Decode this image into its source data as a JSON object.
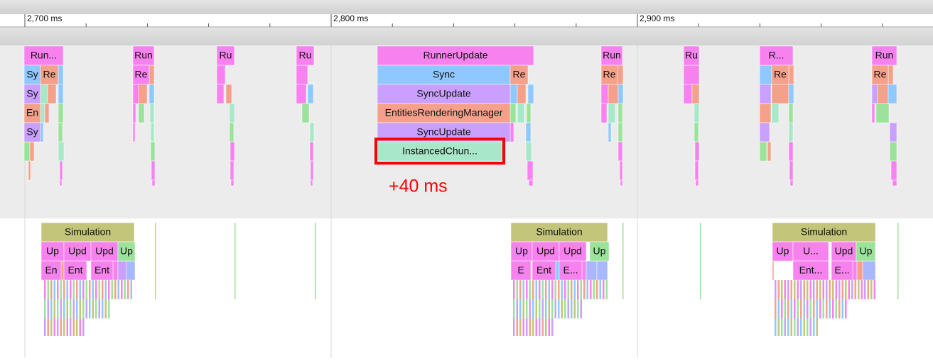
{
  "ruler": {
    "ticks": [
      "2,700 ms",
      "2,800 ms",
      "2,900 ms"
    ]
  },
  "main_thread": {
    "blocks": [
      {
        "label": "Run..."
      },
      {
        "label": "Sy"
      },
      {
        "label": "Re"
      },
      {
        "label": "Sy"
      },
      {
        "label": "En"
      },
      {
        "label": "Sy"
      },
      {
        "label": "Run"
      },
      {
        "label": "Re"
      },
      {
        "label": "Ru"
      },
      {
        "label": "Ru"
      },
      {
        "label": "RunnerUpdate"
      },
      {
        "label": "Sync"
      },
      {
        "label": "Re"
      },
      {
        "label": "SyncUpdate"
      },
      {
        "label": "EntitiesRenderingManager"
      },
      {
        "label": "SyncUpdate"
      },
      {
        "label": "InstancedChun..."
      },
      {
        "label": "Run"
      },
      {
        "label": "Re"
      },
      {
        "label": "Ru"
      },
      {
        "label": "R..."
      },
      {
        "label": "Re"
      },
      {
        "label": "Run"
      },
      {
        "label": "Re"
      }
    ]
  },
  "worker_thread": {
    "blocks": [
      {
        "label": "Simulation"
      },
      {
        "label": "Up"
      },
      {
        "label": "Upd"
      },
      {
        "label": "Upd"
      },
      {
        "label": "Up"
      },
      {
        "label": "En"
      },
      {
        "label": "Ent"
      },
      {
        "label": "Ent"
      },
      {
        "label": "Simulation"
      },
      {
        "label": "Up"
      },
      {
        "label": "Upd"
      },
      {
        "label": "Upd"
      },
      {
        "label": "Up"
      },
      {
        "label": "E"
      },
      {
        "label": "Ent"
      },
      {
        "label": "E..."
      },
      {
        "label": "Simulation"
      },
      {
        "label": "Up"
      },
      {
        "label": "U..."
      },
      {
        "label": "Upd"
      },
      {
        "label": "Up"
      },
      {
        "label": "Ent..."
      },
      {
        "label": "E..."
      }
    ]
  },
  "annotation": "+40 ms"
}
